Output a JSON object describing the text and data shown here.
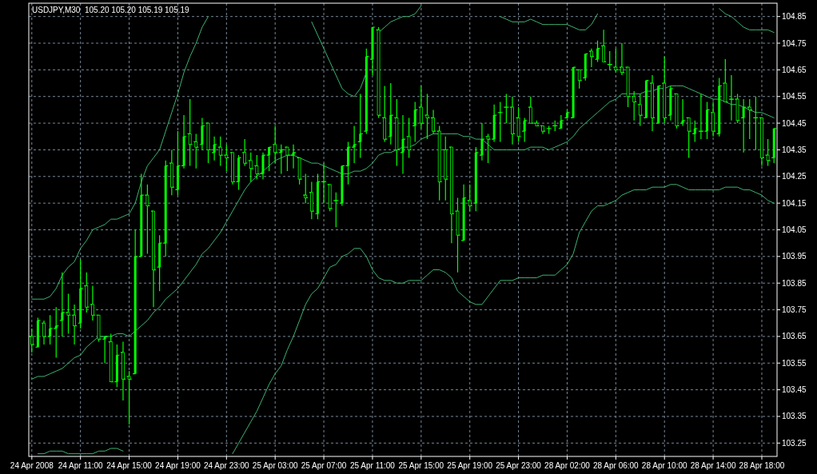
{
  "chart_data": {
    "type": "candlestick",
    "title": "USDJPY,M30  105.20 105.20 105.19 105.19",
    "color": "#00ff00",
    "grid": true,
    "categories": [
      "24 Apr 2008",
      null,
      null,
      null,
      null,
      null,
      null,
      null,
      "24 Apr 11:00",
      null,
      null,
      null,
      null,
      null,
      null,
      null,
      "24 Apr 15:00",
      null,
      null,
      null,
      null,
      null,
      null,
      null,
      "24 Apr 19:00",
      null,
      null,
      null,
      null,
      null,
      null,
      null,
      "24 Apr 23:00",
      null,
      null,
      null,
      null,
      null,
      null,
      null,
      "25 Apr 03:00",
      null,
      null,
      null,
      null,
      null,
      null,
      null,
      "25 Apr 07:00",
      null,
      null,
      null,
      null,
      null,
      null,
      null,
      "25 Apr 11:00",
      null,
      null,
      null,
      null,
      null,
      null,
      null,
      "25 Apr 15:00",
      null,
      null,
      null,
      null,
      null,
      null,
      null,
      "25 Apr 19:00",
      null,
      null,
      null,
      null,
      null,
      null,
      null,
      "25 Apr 23:00",
      null,
      null,
      null,
      null,
      null,
      null,
      null,
      "28 Apr 02:00",
      null,
      null,
      null,
      null,
      null,
      null,
      null,
      "28 Apr 06:00",
      null,
      null,
      null,
      null,
      null,
      null,
      null,
      "28 Apr 10:00",
      null,
      null,
      null,
      null,
      null,
      null,
      null,
      "28 Apr 14:00",
      null,
      null,
      null,
      null,
      null,
      null,
      null,
      "28 Apr 18:00",
      null,
      null
    ],
    "ohlc": [
      [
        103.65,
        103.68,
        103.59,
        103.62
      ],
      [
        103.61,
        103.72,
        103.61,
        103.71
      ],
      [
        103.7,
        103.71,
        103.62,
        103.65
      ],
      [
        103.65,
        103.73,
        103.62,
        103.68
      ],
      [
        103.68,
        103.76,
        103.57,
        103.69
      ],
      [
        103.71,
        103.89,
        103.65,
        103.74
      ],
      [
        103.74,
        103.81,
        103.66,
        103.73
      ],
      [
        103.73,
        103.77,
        103.62,
        103.69
      ],
      [
        103.7,
        103.94,
        103.68,
        103.83
      ],
      [
        103.84,
        103.89,
        103.74,
        103.76
      ],
      [
        103.77,
        103.84,
        103.71,
        103.73
      ],
      [
        103.73,
        103.73,
        103.63,
        103.64
      ],
      [
        103.64,
        103.65,
        103.55,
        103.65
      ],
      [
        103.63,
        103.66,
        103.48,
        103.48
      ],
      [
        103.48,
        103.62,
        103.46,
        103.58
      ],
      [
        103.59,
        103.63,
        103.41,
        103.49
      ],
      [
        103.5,
        103.52,
        103.32,
        103.49
      ],
      [
        103.51,
        104.05,
        103.51,
        103.95
      ],
      [
        103.95,
        104.26,
        103.95,
        104.18
      ],
      [
        104.18,
        104.22,
        103.96,
        104.14
      ],
      [
        104.12,
        104.12,
        103.76,
        103.9
      ],
      [
        103.91,
        104.03,
        103.82,
        104.0
      ],
      [
        104.0,
        104.31,
        103.95,
        104.29
      ],
      [
        104.3,
        104.35,
        104.18,
        104.21
      ],
      [
        104.2,
        104.42,
        104.18,
        104.29
      ],
      [
        104.29,
        104.48,
        104.28,
        104.4
      ],
      [
        104.41,
        104.54,
        104.29,
        104.37
      ],
      [
        104.38,
        104.41,
        104.28,
        104.36
      ],
      [
        104.37,
        104.47,
        104.35,
        104.44
      ],
      [
        104.45,
        104.45,
        104.3,
        104.35
      ],
      [
        104.34,
        104.4,
        104.31,
        104.37
      ],
      [
        104.36,
        104.4,
        104.29,
        104.33
      ],
      [
        104.33,
        104.37,
        104.27,
        104.32
      ],
      [
        104.34,
        104.34,
        104.22,
        104.23
      ],
      [
        104.23,
        104.33,
        104.2,
        104.32
      ],
      [
        104.34,
        104.39,
        104.29,
        104.3
      ],
      [
        104.31,
        104.34,
        104.23,
        104.28
      ],
      [
        104.29,
        104.33,
        104.24,
        104.26
      ],
      [
        104.26,
        104.34,
        104.24,
        104.33
      ],
      [
        104.33,
        104.36,
        104.27,
        104.36
      ],
      [
        104.37,
        104.44,
        104.3,
        104.34
      ],
      [
        104.34,
        104.37,
        104.26,
        104.35
      ],
      [
        104.36,
        104.36,
        104.27,
        104.33
      ],
      [
        104.33,
        104.37,
        104.28,
        104.34
      ],
      [
        104.32,
        104.32,
        104.22,
        104.24
      ],
      [
        104.18,
        104.26,
        104.15,
        104.17
      ],
      [
        104.19,
        104.23,
        104.09,
        104.12
      ],
      [
        104.11,
        104.26,
        104.09,
        104.23
      ],
      [
        104.23,
        104.3,
        104.15,
        104.23
      ],
      [
        104.22,
        104.22,
        104.12,
        104.13
      ],
      [
        104.16,
        104.19,
        104.06,
        104.16
      ],
      [
        104.15,
        104.29,
        104.14,
        104.29
      ],
      [
        104.29,
        104.38,
        104.22,
        104.36
      ],
      [
        104.36,
        104.44,
        104.3,
        104.37
      ],
      [
        104.38,
        104.56,
        104.32,
        104.41
      ],
      [
        104.42,
        104.73,
        104.41,
        104.7
      ],
      [
        104.69,
        104.81,
        104.63,
        104.81
      ],
      [
        104.8,
        104.81,
        104.47,
        104.48
      ],
      [
        104.47,
        104.59,
        104.38,
        104.39
      ],
      [
        104.4,
        104.6,
        104.37,
        104.48
      ],
      [
        104.47,
        104.54,
        104.29,
        104.35
      ],
      [
        104.34,
        104.48,
        104.26,
        104.39
      ],
      [
        104.4,
        104.47,
        104.32,
        104.35
      ],
      [
        104.44,
        104.53,
        104.38,
        104.5
      ],
      [
        104.51,
        104.59,
        104.43,
        104.45
      ],
      [
        104.48,
        104.56,
        104.39,
        104.47
      ],
      [
        104.47,
        104.5,
        104.41,
        104.42
      ],
      [
        104.42,
        104.44,
        104.16,
        104.23
      ],
      [
        104.35,
        104.4,
        104.16,
        104.24
      ],
      [
        104.36,
        104.36,
        104.0,
        104.11
      ],
      [
        104.12,
        104.17,
        103.89,
        104.03
      ],
      [
        104.01,
        104.22,
        104.01,
        104.17
      ],
      [
        104.16,
        104.22,
        104.12,
        104.14
      ],
      [
        104.15,
        104.36,
        104.12,
        104.34
      ],
      [
        104.33,
        104.45,
        104.31,
        104.39
      ],
      [
        104.4,
        104.41,
        104.3,
        104.39
      ],
      [
        104.39,
        104.52,
        104.38,
        104.48
      ],
      [
        104.49,
        104.53,
        104.38,
        104.49
      ],
      [
        104.51,
        104.56,
        104.45,
        104.51
      ],
      [
        104.51,
        104.55,
        104.37,
        104.41
      ],
      [
        104.47,
        104.51,
        104.38,
        104.4
      ],
      [
        104.42,
        104.47,
        104.38,
        104.46
      ],
      [
        104.51,
        104.55,
        104.45,
        104.45
      ],
      [
        104.45,
        104.46,
        104.44,
        104.44
      ],
      [
        104.44,
        104.44,
        104.41,
        104.42
      ],
      [
        104.43,
        104.44,
        104.41,
        104.43
      ],
      [
        104.44,
        104.46,
        104.42,
        104.44
      ],
      [
        104.43,
        104.48,
        104.43,
        104.46
      ],
      [
        104.47,
        104.5,
        104.47,
        104.49
      ],
      [
        104.47,
        104.66,
        104.47,
        104.66
      ],
      [
        104.65,
        104.65,
        104.58,
        104.61
      ],
      [
        104.62,
        104.71,
        104.61,
        104.71
      ],
      [
        104.72,
        104.73,
        104.66,
        104.7
      ],
      [
        104.69,
        104.76,
        104.68,
        104.73
      ],
      [
        104.74,
        104.8,
        104.68,
        104.68
      ],
      [
        104.67,
        104.72,
        104.65,
        104.67
      ],
      [
        104.66,
        104.73,
        104.64,
        104.65
      ],
      [
        104.66,
        104.75,
        104.63,
        104.64
      ],
      [
        104.66,
        104.66,
        104.51,
        104.55
      ],
      [
        104.55,
        104.57,
        104.46,
        104.53
      ],
      [
        104.52,
        104.56,
        104.44,
        104.48
      ],
      [
        104.47,
        104.61,
        104.47,
        104.61
      ],
      [
        104.6,
        104.63,
        104.42,
        104.47
      ],
      [
        104.45,
        104.59,
        104.45,
        104.59
      ],
      [
        104.6,
        104.7,
        104.45,
        104.47
      ],
      [
        104.48,
        104.59,
        104.46,
        104.58
      ],
      [
        104.56,
        104.56,
        104.43,
        104.44
      ],
      [
        104.45,
        104.54,
        104.44,
        104.46
      ],
      [
        104.47,
        104.47,
        104.32,
        104.42
      ],
      [
        104.41,
        104.46,
        104.38,
        104.43
      ],
      [
        104.42,
        104.56,
        104.39,
        104.42
      ],
      [
        104.42,
        104.53,
        104.39,
        104.5
      ],
      [
        104.49,
        104.53,
        104.4,
        104.42
      ],
      [
        104.41,
        104.62,
        104.4,
        104.59
      ],
      [
        104.6,
        104.69,
        104.53,
        104.53
      ],
      [
        104.54,
        104.63,
        104.46,
        104.54
      ],
      [
        104.54,
        104.56,
        104.45,
        104.46
      ],
      [
        104.47,
        104.54,
        104.34,
        104.51
      ],
      [
        104.51,
        104.54,
        104.39,
        104.5
      ],
      [
        104.47,
        104.55,
        104.35,
        104.47
      ],
      [
        104.47,
        104.47,
        104.29,
        104.32
      ],
      [
        104.33,
        104.39,
        104.29,
        104.31
      ],
      [
        104.32,
        104.43,
        104.3,
        104.43
      ]
    ],
    "series": [
      {
        "type": "line",
        "color": "#3cb371",
        "values": [
          103.79,
          103.79,
          103.79,
          103.8,
          103.83,
          103.88,
          103.91,
          103.93,
          103.98,
          104.01,
          104.05,
          104.06,
          104.07,
          104.09,
          104.09,
          104.1,
          104.11,
          104.15,
          104.23,
          104.29,
          104.32,
          104.35,
          104.42,
          104.49,
          104.56,
          104.64,
          104.7,
          104.75,
          104.81,
          104.85,
          null,
          null,
          null,
          null,
          null,
          null,
          null,
          null,
          null,
          null,
          null,
          null,
          null,
          null,
          null,
          null,
          104.83,
          104.78,
          104.73,
          104.68,
          104.63,
          104.58,
          104.56,
          104.55,
          104.58,
          104.64,
          null,
          104.79,
          104.81,
          104.83,
          104.84,
          104.85,
          104.85,
          104.86,
          104.89,
          null,
          null,
          null,
          null,
          null,
          null,
          null,
          null,
          null,
          null,
          null,
          null,
          104.85,
          104.84,
          104.83,
          104.83,
          104.83,
          104.84,
          104.83,
          104.82,
          104.82,
          104.82,
          104.82,
          104.82,
          104.81,
          104.8,
          104.8,
          104.82,
          104.86,
          null,
          null,
          null,
          null,
          null,
          null,
          null,
          null,
          null,
          null,
          null,
          null,
          null,
          null,
          null,
          null,
          null,
          null,
          null,
          104.88,
          104.86,
          104.85,
          104.83,
          104.81,
          104.8,
          104.8,
          104.8,
          104.8,
          104.79
        ]
      },
      {
        "type": "line",
        "color": "#3cb371",
        "values": [
          103.49,
          103.5,
          103.5,
          103.51,
          103.52,
          103.53,
          103.55,
          103.57,
          103.58,
          103.61,
          103.63,
          103.65,
          103.65,
          103.65,
          103.66,
          103.66,
          103.65,
          103.67,
          103.69,
          103.71,
          103.74,
          103.76,
          103.79,
          103.81,
          103.83,
          103.86,
          103.89,
          103.92,
          103.96,
          103.98,
          104.01,
          104.04,
          104.08,
          104.12,
          104.16,
          104.2,
          104.23,
          104.25,
          104.27,
          104.29,
          104.31,
          104.32,
          104.33,
          104.33,
          104.32,
          104.31,
          104.3,
          104.3,
          104.29,
          104.28,
          104.27,
          104.26,
          104.26,
          104.27,
          104.27,
          104.28,
          104.3,
          104.33,
          104.34,
          104.34,
          104.35,
          104.36,
          104.36,
          104.37,
          104.39,
          104.4,
          104.41,
          104.41,
          104.41,
          104.41,
          104.41,
          104.4,
          104.4,
          104.39,
          104.39,
          104.37,
          104.35,
          104.35,
          104.35,
          104.35,
          104.35,
          104.35,
          104.36,
          104.36,
          104.36,
          104.35,
          104.36,
          104.37,
          104.38,
          104.4,
          104.43,
          104.45,
          104.47,
          104.49,
          104.51,
          104.53,
          104.54,
          104.56,
          104.56,
          104.56,
          104.56,
          104.57,
          104.57,
          104.58,
          104.58,
          104.59,
          104.59,
          104.59,
          104.58,
          104.57,
          104.56,
          104.55,
          104.54,
          104.54,
          104.53,
          104.52,
          104.52,
          104.51,
          104.5,
          104.49,
          104.49,
          104.48,
          104.47
        ]
      },
      {
        "type": "line",
        "color": "#3cb371",
        "values": [
          null,
          103.21,
          103.21,
          103.22,
          103.22,
          103.22,
          103.21,
          103.21,
          103.21,
          103.21,
          103.21,
          103.22,
          103.22,
          103.23,
          103.23,
          103.22,
          null,
          null,
          null,
          null,
          null,
          null,
          null,
          null,
          null,
          null,
          null,
          null,
          null,
          null,
          null,
          null,
          null,
          103.21,
          103.25,
          103.29,
          103.33,
          103.37,
          103.42,
          103.47,
          103.51,
          103.54,
          103.6,
          103.65,
          103.71,
          103.77,
          103.81,
          103.83,
          103.87,
          103.91,
          103.92,
          103.95,
          103.96,
          103.98,
          103.98,
          103.95,
          103.9,
          103.87,
          103.86,
          103.86,
          103.85,
          103.85,
          103.86,
          103.86,
          103.86,
          103.88,
          103.9,
          103.9,
          103.89,
          103.87,
          103.82,
          103.8,
          103.78,
          103.77,
          103.77,
          103.8,
          103.83,
          103.86,
          103.86,
          103.86,
          103.87,
          103.87,
          103.87,
          103.87,
          103.88,
          103.88,
          103.88,
          103.9,
          103.92,
          103.96,
          104.04,
          104.08,
          104.12,
          104.14,
          104.14,
          104.15,
          104.16,
          104.18,
          104.19,
          104.2,
          104.2,
          104.2,
          104.21,
          104.21,
          104.21,
          104.22,
          104.22,
          104.21,
          104.2,
          104.2,
          104.2,
          104.2,
          104.2,
          104.2,
          104.21,
          104.21,
          104.21,
          104.2,
          104.2,
          104.19,
          104.18,
          104.16,
          104.15
        ]
      }
    ],
    "ylim": [
      103.2,
      104.9
    ],
    "yticks": [
      103.25,
      103.35,
      103.45,
      103.55,
      103.65,
      103.75,
      103.85,
      103.95,
      104.05,
      104.15,
      104.25,
      104.35,
      104.45,
      104.55,
      104.65,
      104.75,
      104.85
    ]
  }
}
